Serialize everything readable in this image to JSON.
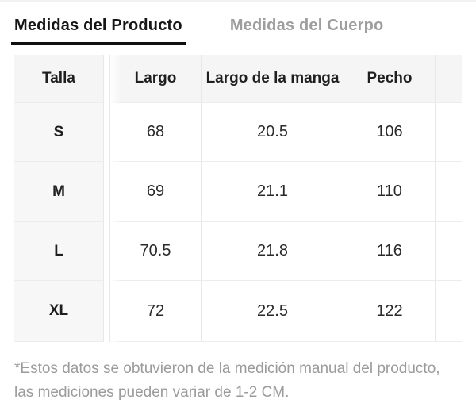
{
  "tabs": [
    {
      "label": "Medidas del Producto",
      "active": true
    },
    {
      "label": "Medidas del Cuerpo",
      "active": false
    }
  ],
  "table": {
    "columns": [
      "Talla",
      "Largo",
      "Largo de la manga",
      "Pecho"
    ],
    "rows": [
      {
        "talla": "S",
        "largo": "68",
        "manga": "20.5",
        "pecho": "106"
      },
      {
        "talla": "M",
        "largo": "69",
        "manga": "21.1",
        "pecho": "110"
      },
      {
        "talla": "L",
        "largo": "70.5",
        "manga": "21.8",
        "pecho": "116"
      },
      {
        "talla": "XL",
        "largo": "72",
        "manga": "22.5",
        "pecho": "122"
      }
    ]
  },
  "footnote": {
    "lines": [
      "*Estos datos se obtuvieron de la medición manual del producto,",
      "las mediciones pueden variar de 1-2 CM."
    ]
  },
  "colors": {
    "active_tab_text": "#161616",
    "active_tab_underline": "#0f0f0f",
    "inactive_tab_text": "#9e9e9e",
    "header_bg": "#f5f5f5",
    "frozen_column_bg": "#f7f7f8",
    "border": "#e8e8e8",
    "value_text": "#2a2a2a",
    "footnote_text": "#9b9b9b"
  }
}
